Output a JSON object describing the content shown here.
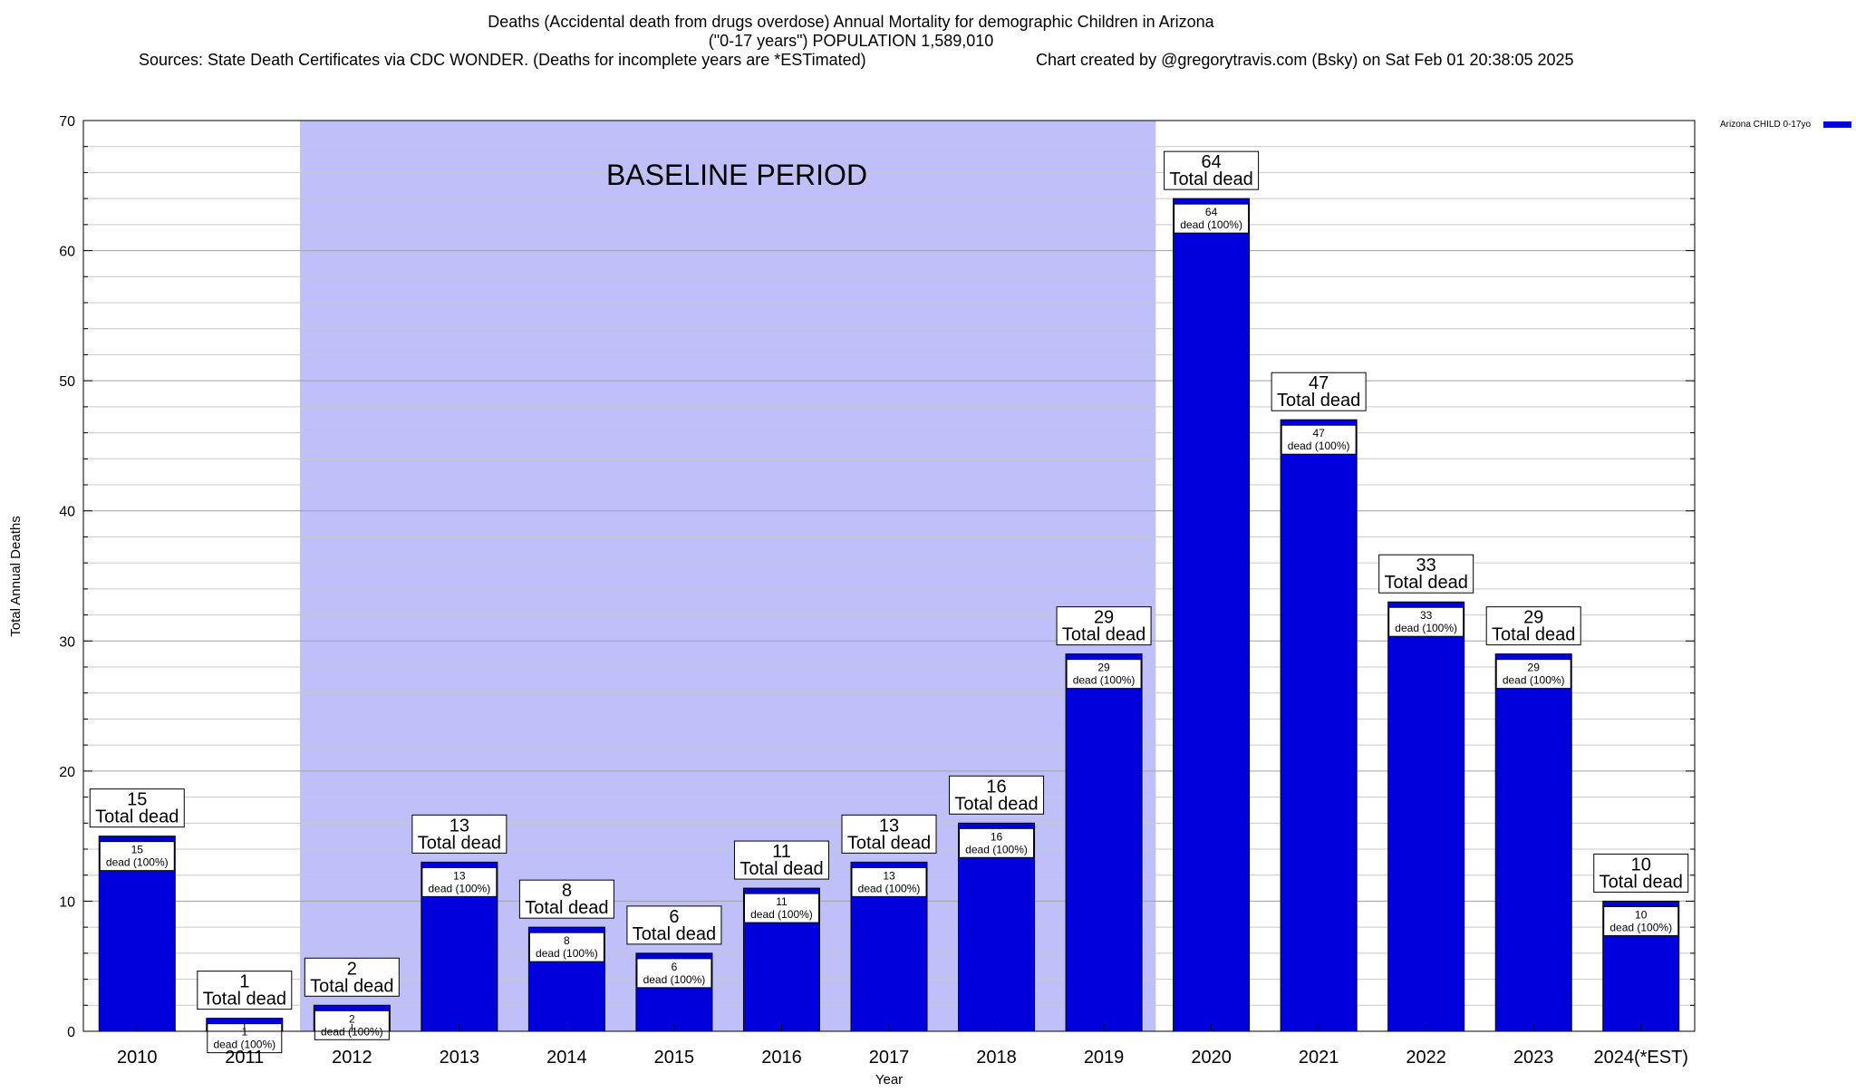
{
  "chart_data": {
    "type": "bar",
    "title_lines": [
      "Deaths (Accidental death from drugs overdose) Annual Mortality for demographic Children in Arizona",
      "(\"0-17 years\") POPULATION 1,589,010"
    ],
    "subtitle_left": "Sources: State Death Certificates via CDC WONDER. (Deaths for incomplete years are *ESTimated)",
    "subtitle_right": "Chart created by @gregorytravis.com (Bsky) on Sat Feb 01 20:38:05 2025",
    "xlabel": "Year",
    "ylabel": "Total Annual Deaths",
    "ylim": [
      0,
      70
    ],
    "yticks": [
      0,
      10,
      20,
      30,
      40,
      50,
      60,
      70
    ],
    "categories": [
      "2010",
      "2011",
      "2012",
      "2013",
      "2014",
      "2015",
      "2016",
      "2017",
      "2018",
      "2019",
      "2020",
      "2021",
      "2022",
      "2023",
      "2024(*EST)"
    ],
    "series": [
      {
        "name": "Arizona CHILD 0-17yo",
        "color": "#0000dd",
        "values": [
          15,
          1,
          2,
          13,
          8,
          6,
          11,
          13,
          16,
          29,
          64,
          47,
          33,
          29,
          10
        ]
      }
    ],
    "inner_label_suffix": "dead (100%)",
    "outer_label_suffix": "Total dead",
    "baseline_period": {
      "label": "BASELINE PERIOD",
      "from_category": "2012",
      "to_category": "2019",
      "color": "#bfbff9"
    },
    "grid": true,
    "minor_grid_step": 2,
    "legend_position": "top-right"
  }
}
